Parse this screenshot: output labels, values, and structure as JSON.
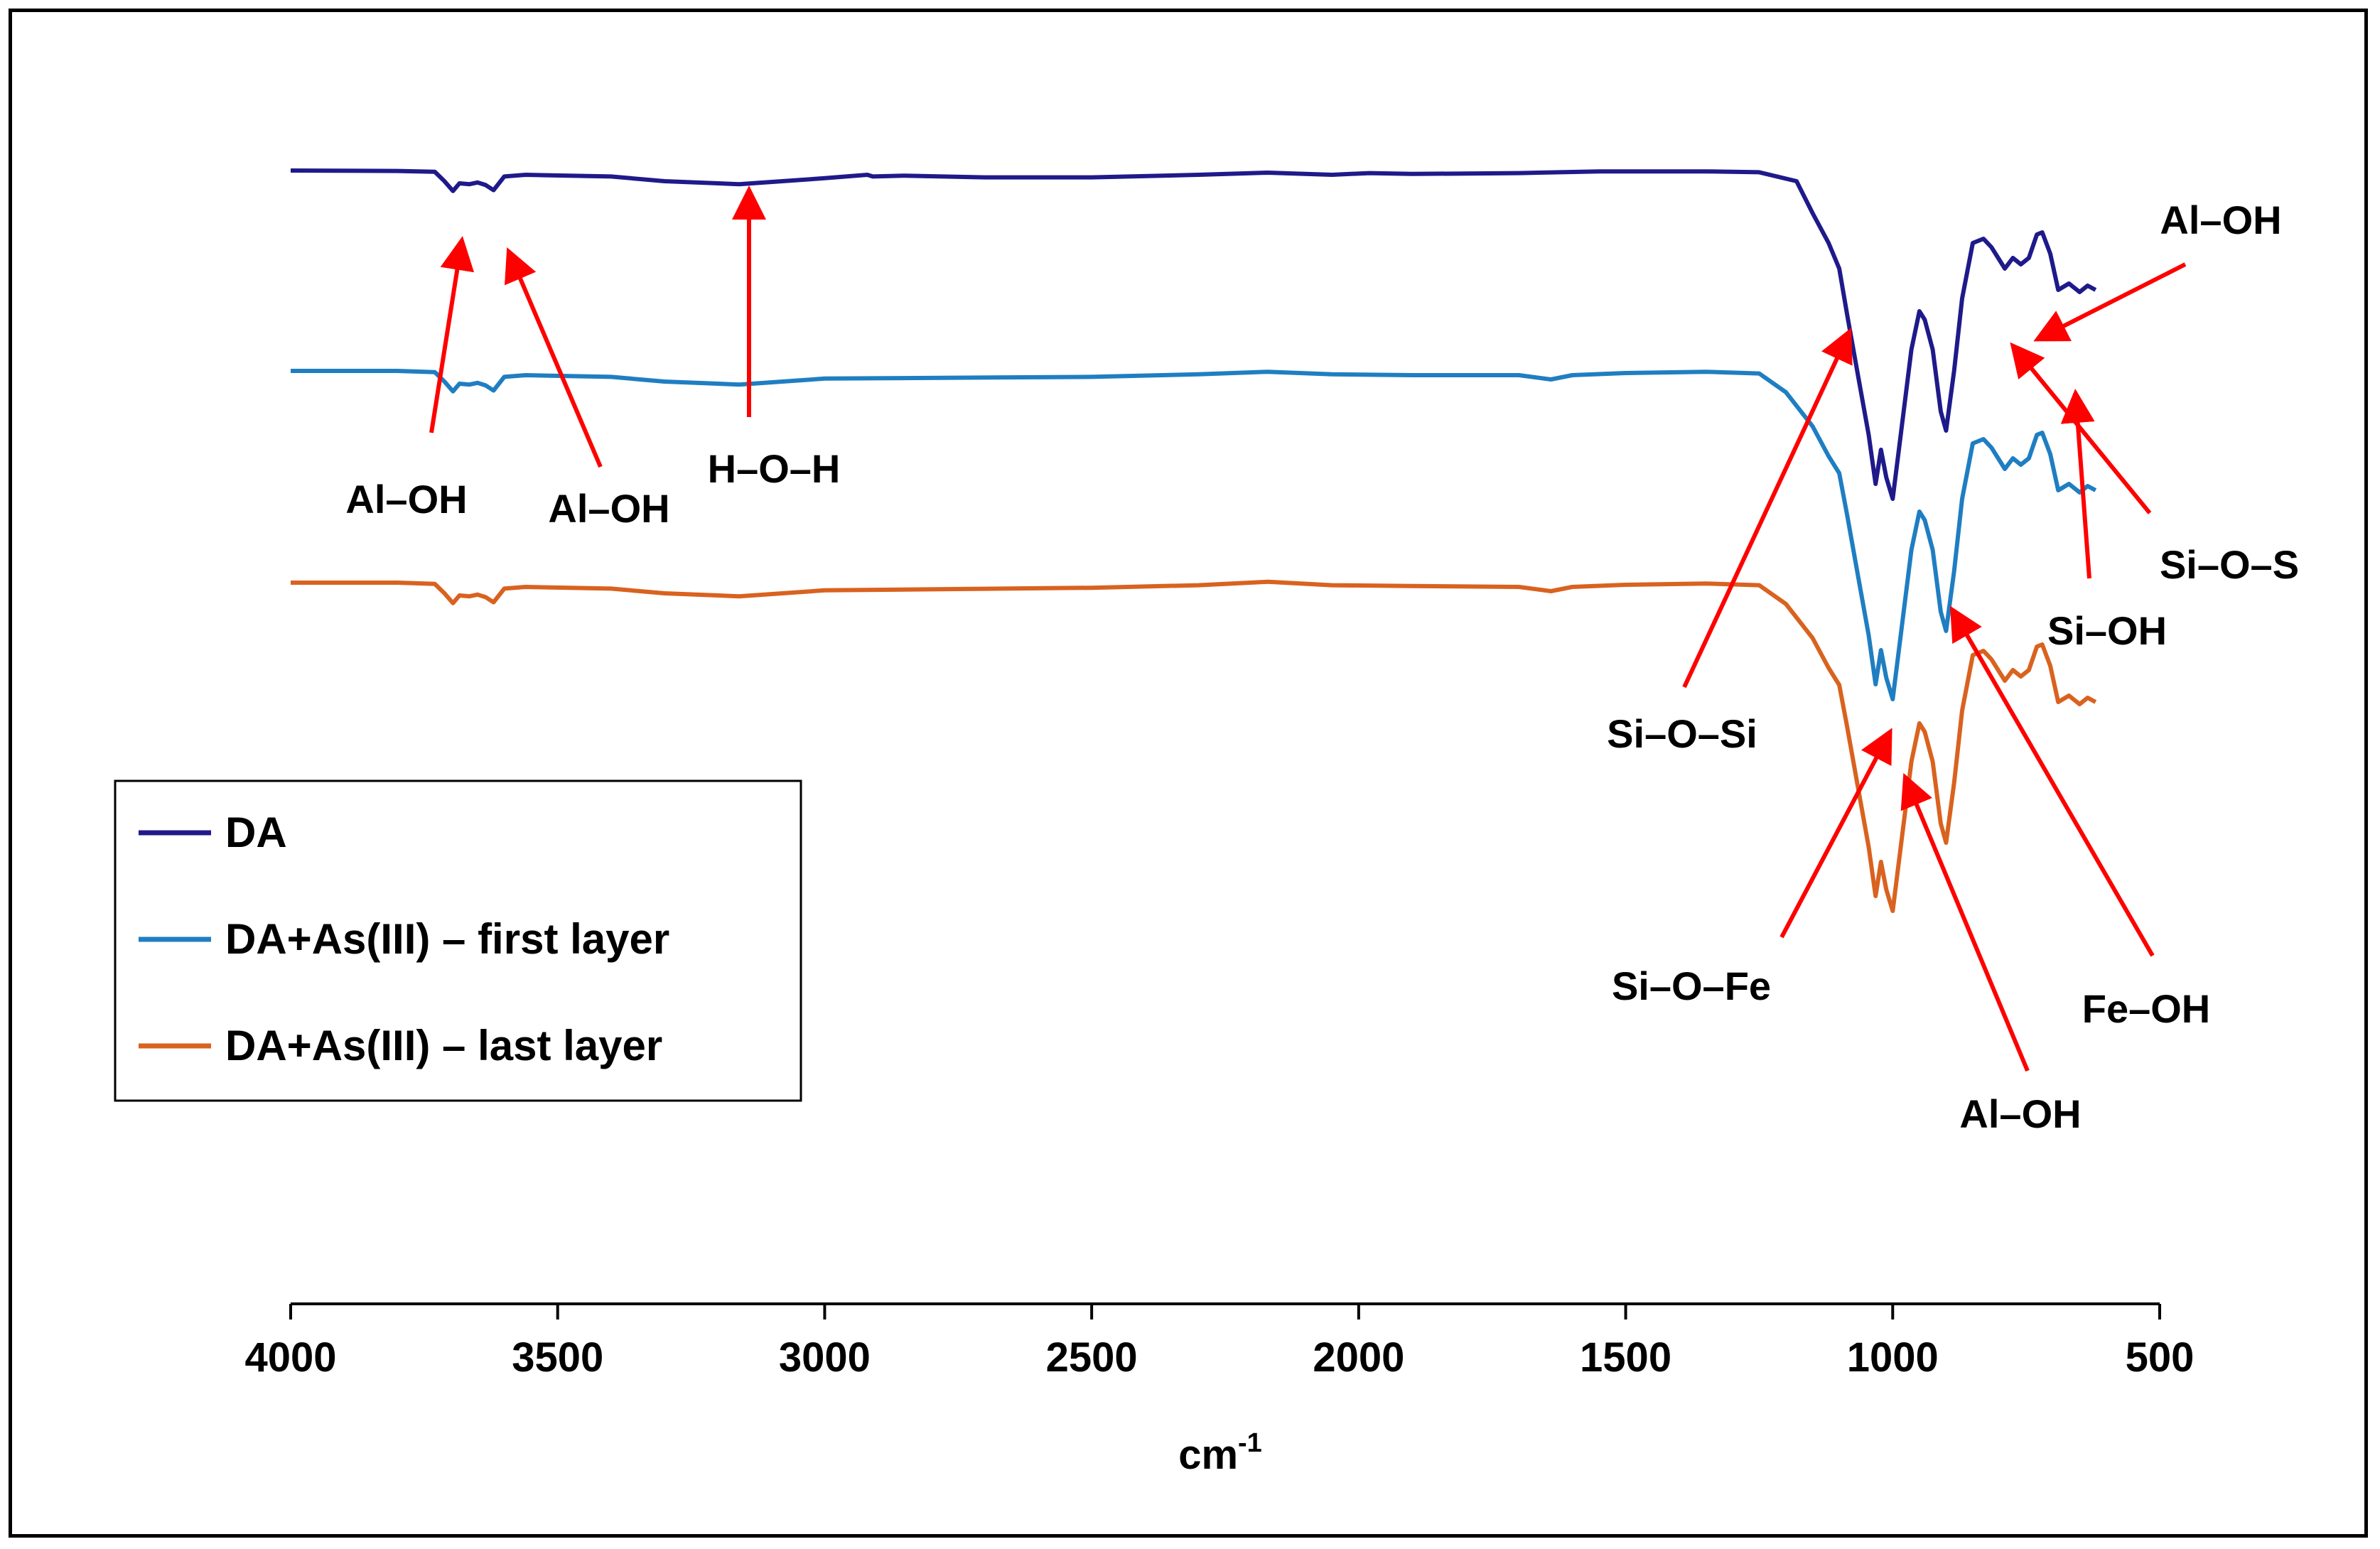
{
  "chart_data": {
    "type": "line",
    "title": "",
    "xlabel": "cm",
    "xlabel_superscript": "-1",
    "ylabel": "",
    "xlim": [
      4000,
      500
    ],
    "x_reversed": true,
    "grid": false,
    "x_ticks": [
      4000,
      3500,
      3000,
      2500,
      2000,
      1500,
      1000,
      500
    ],
    "legend": {
      "placement": "left-middle",
      "entries": [
        "DA",
        "DA+As(III)  – first layer",
        "DA+As(III)  – last layer"
      ]
    },
    "series": [
      {
        "name": "DA",
        "color": "#1f1a8a",
        "offset": 0,
        "points": [
          [
            4000,
            0.0
          ],
          [
            3800,
            -1
          ],
          [
            3730,
            -3
          ],
          [
            3712,
            -25
          ],
          [
            3696,
            -48
          ],
          [
            3684,
            -30
          ],
          [
            3665,
            -32
          ],
          [
            3650,
            -28
          ],
          [
            3635,
            -34
          ],
          [
            3620,
            -46
          ],
          [
            3600,
            -14
          ],
          [
            3560,
            -10
          ],
          [
            3400,
            -14
          ],
          [
            3300,
            -25
          ],
          [
            3160,
            -32
          ],
          [
            3000,
            -18
          ],
          [
            2920,
            -10
          ],
          [
            2910,
            -14
          ],
          [
            2850,
            -12
          ],
          [
            2700,
            -16
          ],
          [
            2500,
            -16
          ],
          [
            2300,
            -10
          ],
          [
            2170,
            -5
          ],
          [
            2050,
            -10
          ],
          [
            1980,
            -6
          ],
          [
            1900,
            -8
          ],
          [
            1700,
            -6
          ],
          [
            1550,
            -2
          ],
          [
            1350,
            -2
          ],
          [
            1250,
            -4
          ],
          [
            1180,
            -25
          ],
          [
            1150,
            -100
          ],
          [
            1120,
            -170
          ],
          [
            1100,
            -230
          ],
          [
            1085,
            -340
          ],
          [
            1065,
            -480
          ],
          [
            1045,
            -620
          ],
          [
            1032,
            -735
          ],
          [
            1022,
            -655
          ],
          [
            1012,
            -720
          ],
          [
            1000,
            -770
          ],
          [
            985,
            -620
          ],
          [
            965,
            -420
          ],
          [
            950,
            -330
          ],
          [
            940,
            -350
          ],
          [
            925,
            -420
          ],
          [
            910,
            -565
          ],
          [
            900,
            -610
          ],
          [
            885,
            -470
          ],
          [
            870,
            -300
          ],
          [
            850,
            -170
          ],
          [
            830,
            -160
          ],
          [
            815,
            -180
          ],
          [
            800,
            -210
          ],
          [
            790,
            -230
          ],
          [
            775,
            -205
          ],
          [
            760,
            -220
          ],
          [
            745,
            -205
          ],
          [
            730,
            -150
          ],
          [
            720,
            -145
          ],
          [
            705,
            -195
          ],
          [
            690,
            -280
          ],
          [
            670,
            -265
          ],
          [
            650,
            -285
          ],
          [
            635,
            -270
          ],
          [
            620,
            -280
          ]
        ]
      },
      {
        "name": "DA+As(III)  – first layer",
        "color": "#1f7ec2",
        "offset": 0,
        "points": [
          [
            4000,
            0.0
          ],
          [
            3800,
            0
          ],
          [
            3730,
            -3
          ],
          [
            3712,
            -25
          ],
          [
            3696,
            -48
          ],
          [
            3684,
            -30
          ],
          [
            3665,
            -32
          ],
          [
            3650,
            -28
          ],
          [
            3635,
            -34
          ],
          [
            3620,
            -46
          ],
          [
            3600,
            -14
          ],
          [
            3560,
            -10
          ],
          [
            3400,
            -14
          ],
          [
            3300,
            -25
          ],
          [
            3160,
            -32
          ],
          [
            3000,
            -18
          ],
          [
            2500,
            -14
          ],
          [
            2300,
            -8
          ],
          [
            2170,
            -2
          ],
          [
            2050,
            -8
          ],
          [
            1900,
            -10
          ],
          [
            1700,
            -10
          ],
          [
            1640,
            -20
          ],
          [
            1600,
            -10
          ],
          [
            1500,
            -5
          ],
          [
            1350,
            -2
          ],
          [
            1250,
            -6
          ],
          [
            1200,
            -50
          ],
          [
            1150,
            -130
          ],
          [
            1120,
            -200
          ],
          [
            1100,
            -240
          ],
          [
            1085,
            -340
          ],
          [
            1065,
            -480
          ],
          [
            1045,
            -620
          ],
          [
            1032,
            -735
          ],
          [
            1022,
            -655
          ],
          [
            1012,
            -720
          ],
          [
            1000,
            -770
          ],
          [
            985,
            -620
          ],
          [
            965,
            -420
          ],
          [
            950,
            -330
          ],
          [
            940,
            -350
          ],
          [
            925,
            -420
          ],
          [
            910,
            -565
          ],
          [
            900,
            -610
          ],
          [
            885,
            -470
          ],
          [
            870,
            -300
          ],
          [
            850,
            -170
          ],
          [
            830,
            -160
          ],
          [
            815,
            -180
          ],
          [
            800,
            -210
          ],
          [
            790,
            -230
          ],
          [
            775,
            -205
          ],
          [
            760,
            -220
          ],
          [
            745,
            -205
          ],
          [
            730,
            -150
          ],
          [
            720,
            -145
          ],
          [
            705,
            -195
          ],
          [
            690,
            -280
          ],
          [
            670,
            -265
          ],
          [
            650,
            -285
          ],
          [
            635,
            -270
          ],
          [
            620,
            -280
          ]
        ]
      },
      {
        "name": "DA+As(III)  – last layer",
        "color": "#d9621f",
        "offset": 0,
        "points": [
          [
            4000,
            0.0
          ],
          [
            3800,
            0
          ],
          [
            3730,
            -3
          ],
          [
            3712,
            -25
          ],
          [
            3696,
            -48
          ],
          [
            3684,
            -30
          ],
          [
            3665,
            -32
          ],
          [
            3650,
            -28
          ],
          [
            3635,
            -34
          ],
          [
            3620,
            -46
          ],
          [
            3600,
            -14
          ],
          [
            3560,
            -10
          ],
          [
            3400,
            -14
          ],
          [
            3300,
            -25
          ],
          [
            3160,
            -32
          ],
          [
            3000,
            -18
          ],
          [
            2500,
            -12
          ],
          [
            2300,
            -6
          ],
          [
            2170,
            2
          ],
          [
            2050,
            -6
          ],
          [
            1900,
            -8
          ],
          [
            1700,
            -10
          ],
          [
            1640,
            -20
          ],
          [
            1600,
            -10
          ],
          [
            1500,
            -5
          ],
          [
            1350,
            -2
          ],
          [
            1250,
            -6
          ],
          [
            1200,
            -50
          ],
          [
            1150,
            -130
          ],
          [
            1120,
            -200
          ],
          [
            1100,
            -240
          ],
          [
            1085,
            -340
          ],
          [
            1065,
            -480
          ],
          [
            1045,
            -620
          ],
          [
            1032,
            -735
          ],
          [
            1022,
            -655
          ],
          [
            1012,
            -720
          ],
          [
            1000,
            -770
          ],
          [
            985,
            -620
          ],
          [
            965,
            -420
          ],
          [
            950,
            -330
          ],
          [
            940,
            -350
          ],
          [
            925,
            -420
          ],
          [
            910,
            -565
          ],
          [
            900,
            -610
          ],
          [
            885,
            -470
          ],
          [
            870,
            -300
          ],
          [
            850,
            -170
          ],
          [
            830,
            -160
          ],
          [
            815,
            -180
          ],
          [
            800,
            -210
          ],
          [
            790,
            -230
          ],
          [
            775,
            -205
          ],
          [
            760,
            -220
          ],
          [
            745,
            -205
          ],
          [
            730,
            -150
          ],
          [
            720,
            -145
          ],
          [
            705,
            -195
          ],
          [
            690,
            -280
          ],
          [
            670,
            -265
          ],
          [
            650,
            -285
          ],
          [
            635,
            -270
          ],
          [
            620,
            -280
          ]
        ]
      }
    ],
    "annotations": [
      {
        "id": "al-oh-1",
        "label": "Al–OH",
        "peak_cm": 3696
      },
      {
        "id": "al-oh-2",
        "label": "Al–OH",
        "peak_cm": 3620
      },
      {
        "id": "h-o-h",
        "label": "H–O–H",
        "peak_cm": 3160
      },
      {
        "id": "si-o-si",
        "label": "Si–O–Si",
        "peak_cm": 1105
      },
      {
        "id": "si-o-fe",
        "label": "Si–O–Fe",
        "peak_cm": 1030
      },
      {
        "id": "al-oh-3",
        "label": "Al–OH",
        "peak_cm": 1000
      },
      {
        "id": "fe-oh",
        "label": "Fe–OH",
        "peak_cm": 910
      },
      {
        "id": "si-oh",
        "label": "Si–OH",
        "peak_cm": 665
      },
      {
        "id": "si-o-s",
        "label": "Si–O–S",
        "peak_cm": 798
      },
      {
        "id": "al-oh-4",
        "label": "Al–OH",
        "peak_cm": 755
      }
    ],
    "annotation_color": "#ff0000"
  }
}
